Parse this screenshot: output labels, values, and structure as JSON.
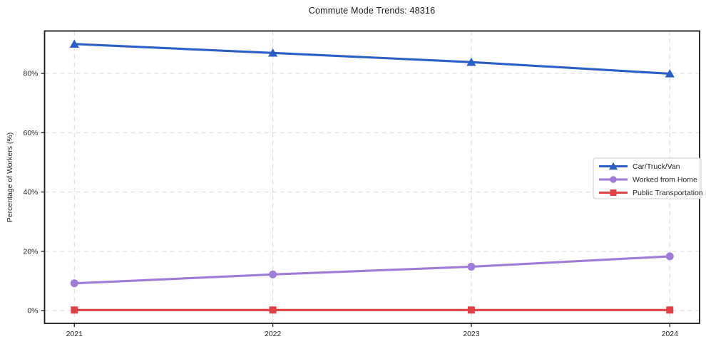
{
  "chart_data": {
    "type": "line",
    "title": "Commute Mode Trends: 48316",
    "ylabel": "Percentage of Workers (%)",
    "xlabel": "",
    "x": [
      2021,
      2022,
      2023,
      2024
    ],
    "x_tick_labels": [
      "2021",
      "2022",
      "2023",
      "2024"
    ],
    "y_ticks": [
      0,
      20,
      40,
      60,
      80
    ],
    "y_tick_labels": [
      "0%",
      "20%",
      "40%",
      "60%",
      "80%"
    ],
    "xlim": [
      2020.85,
      2024.15
    ],
    "ylim": [
      -4.3,
      94.3
    ],
    "grid": true,
    "grid_style": "dashed",
    "legend_position": "center-right",
    "series": [
      {
        "name": "Car/Truck/Van",
        "marker": "triangle",
        "color": "#2b5fc4",
        "values": [
          89.9,
          86.9,
          83.8,
          79.9
        ]
      },
      {
        "name": "Worked from Home",
        "marker": "circle",
        "color": "#9f7cd8",
        "values": [
          9.2,
          12.2,
          14.8,
          18.3
        ]
      },
      {
        "name": "Public Transportation",
        "marker": "square",
        "color": "#dd4248",
        "values": [
          0.2,
          0.2,
          0.2,
          0.2
        ]
      }
    ],
    "colors": {
      "grid": "#d9d9d9",
      "spine": "#1a1a1a",
      "text": "#262626",
      "background": "#ffffff"
    }
  }
}
